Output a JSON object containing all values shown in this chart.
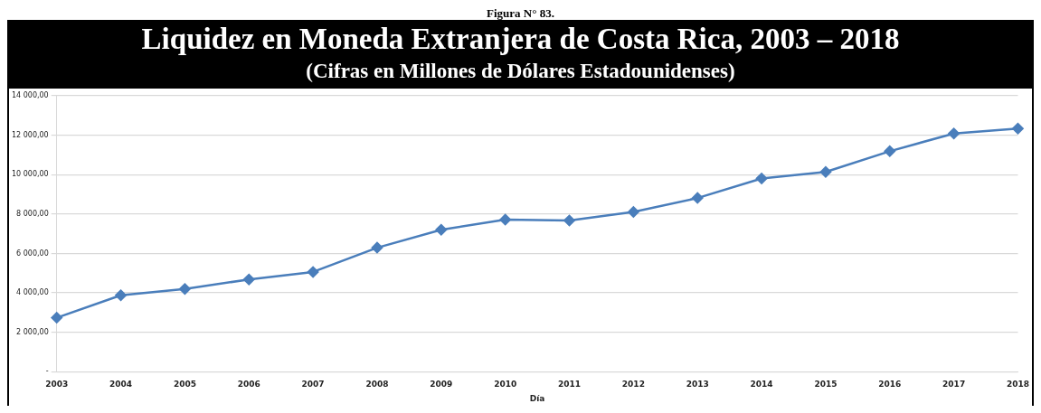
{
  "chart_data": {
    "type": "line",
    "title": "Liquidez en Moneda Extranjera de Costa Rica, 2003 – 2018",
    "subtitle": "(Cifras en Millones de Dólares Estadounidenses)",
    "annotations": [
      "Figura N° 83."
    ],
    "xlabel": "Día",
    "categories": [
      "2003",
      "2004",
      "2005",
      "2006",
      "2007",
      "2008",
      "2009",
      "2010",
      "2011",
      "2012",
      "2013",
      "2014",
      "2015",
      "2016",
      "2017",
      "2018"
    ],
    "series": [
      {
        "color": "#4a7ebb",
        "values": [
          2740,
          3880,
          4200,
          4680,
          5060,
          6290,
          7200,
          7710,
          7670,
          8100,
          8810,
          9800,
          10130,
          11180,
          12080,
          12330
        ]
      }
    ],
    "ylim": [
      0,
      14000
    ],
    "yticks": [
      {
        "value": 0,
        "label": "-"
      },
      {
        "value": 2000,
        "label": "2 000,00"
      },
      {
        "value": 4000,
        "label": "4 000,00"
      },
      {
        "value": 6000,
        "label": "6 000,00"
      },
      {
        "value": 8000,
        "label": "8 000,00"
      },
      {
        "value": 10000,
        "label": "10 000,00"
      },
      {
        "value": 12000,
        "label": "12 000,00"
      },
      {
        "value": 14000,
        "label": "14 000,00"
      }
    ],
    "grid": "y",
    "legend": false,
    "marker": "diamond",
    "line_style": "solid"
  }
}
